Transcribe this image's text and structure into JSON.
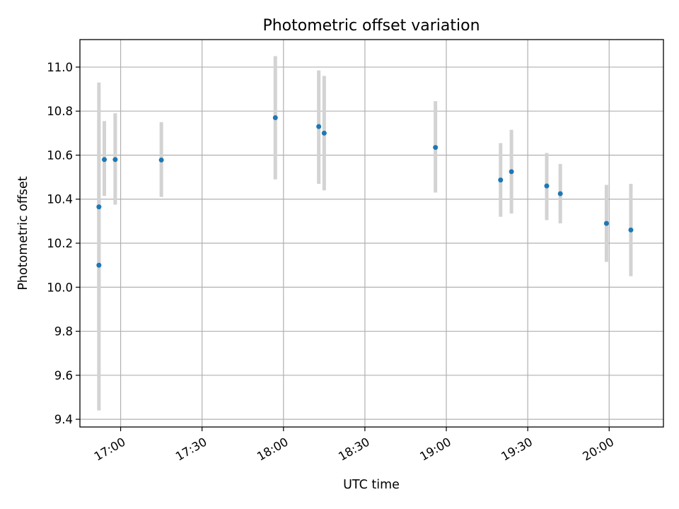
{
  "chart_data": {
    "type": "scatter",
    "title": "Photometric offset variation",
    "xlabel": "UTC time",
    "ylabel": "Photometric offset",
    "ylim": [
      9.365,
      11.125
    ],
    "xlim": [
      "16:45",
      "20:20"
    ],
    "grid": true,
    "yticks": [
      "9.4",
      "9.6",
      "9.8",
      "10.0",
      "10.2",
      "10.4",
      "10.6",
      "10.8",
      "11.0"
    ],
    "xticks": [
      "17:00",
      "17:30",
      "18:00",
      "18:30",
      "19:00",
      "19:30",
      "20:00"
    ],
    "colors": {
      "point": "#1f77b4",
      "errorbar": "#d3d3d3",
      "grid": "#b0b0b0"
    },
    "points": [
      {
        "x": "16:52",
        "y": 10.1,
        "yerr": [
          9.44,
          10.76
        ]
      },
      {
        "x": "16:52",
        "y": 10.365,
        "yerr": [
          9.8,
          10.93
        ]
      },
      {
        "x": "16:54",
        "y": 10.58,
        "yerr": [
          10.415,
          10.755
        ]
      },
      {
        "x": "16:58",
        "y": 10.58,
        "yerr": [
          10.375,
          10.79
        ]
      },
      {
        "x": "17:15",
        "y": 10.578,
        "yerr": [
          10.41,
          10.75
        ]
      },
      {
        "x": "17:57",
        "y": 10.77,
        "yerr": [
          10.49,
          11.05
        ]
      },
      {
        "x": "18:13",
        "y": 10.73,
        "yerr": [
          10.47,
          10.985
        ]
      },
      {
        "x": "18:15",
        "y": 10.7,
        "yerr": [
          10.44,
          10.96
        ]
      },
      {
        "x": "18:56",
        "y": 10.635,
        "yerr": [
          10.43,
          10.845
        ]
      },
      {
        "x": "19:20",
        "y": 10.487,
        "yerr": [
          10.32,
          10.655
        ]
      },
      {
        "x": "19:24",
        "y": 10.525,
        "yerr": [
          10.335,
          10.715
        ]
      },
      {
        "x": "19:37",
        "y": 10.46,
        "yerr": [
          10.305,
          10.61
        ]
      },
      {
        "x": "19:42",
        "y": 10.425,
        "yerr": [
          10.29,
          10.56
        ]
      },
      {
        "x": "19:59",
        "y": 10.29,
        "yerr": [
          10.115,
          10.465
        ]
      },
      {
        "x": "20:08",
        "y": 10.26,
        "yerr": [
          10.05,
          10.47
        ]
      }
    ]
  }
}
